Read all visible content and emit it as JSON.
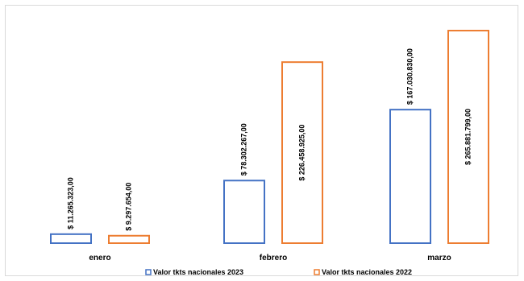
{
  "chart_data": {
    "type": "bar",
    "title": "",
    "xlabel": "",
    "ylabel": "",
    "categories": [
      "enero",
      "febrero",
      "marzo"
    ],
    "ylim": [
      0,
      280000000
    ],
    "grid": false,
    "legend": "bottom",
    "series": [
      {
        "name": "Valor tkts nacionales 2023",
        "color": "#4472C4",
        "values": [
          11265323,
          78302267,
          167030830
        ],
        "labels": [
          "$ 11.265.323,00",
          "$ 78.302.267,00",
          "$ 167.030.830,00"
        ]
      },
      {
        "name": "Valor tkts nacionales 2022",
        "color": "#ED7D31",
        "values": [
          9297654,
          226458925,
          265881799
        ],
        "labels": [
          "$ 9.297.654,00",
          "$ 226.458.925,00",
          "$ 265.881.799,00"
        ]
      }
    ]
  }
}
